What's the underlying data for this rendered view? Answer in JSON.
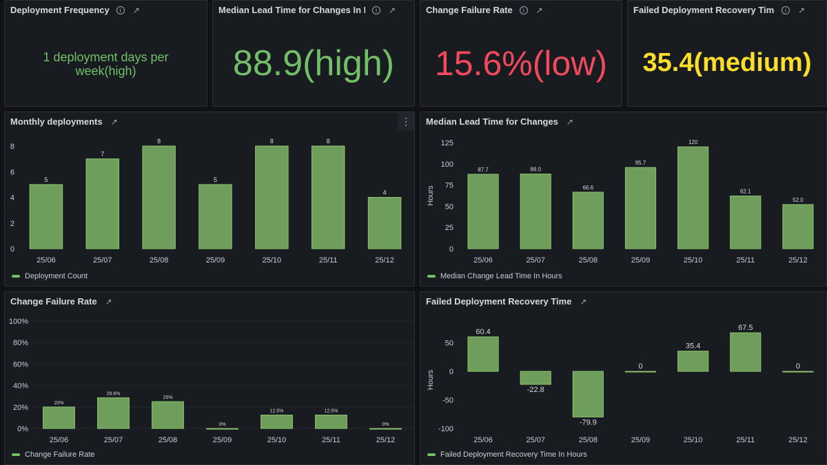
{
  "colors": {
    "green": "#73bf69",
    "red": "#f2495c",
    "yellow": "#fade2a",
    "bar_fill": "#6f9e5c",
    "bar_stroke": "#8ac56e"
  },
  "stats": [
    {
      "title": "Deployment Frequency",
      "value": "1 deployment days per week(high)",
      "color": "#73bf69"
    },
    {
      "title": "Median Lead Time for Changes In Hours",
      "value": "88.9(high)",
      "color": "#73bf69"
    },
    {
      "title": "Change Failure Rate",
      "value": "15.6%(low)",
      "color": "#f2495c"
    },
    {
      "title": "Failed Deployment Recovery Time In Hours",
      "value": "35.4(medium)",
      "color": "#fade2a"
    }
  ],
  "icons": {
    "info": "info-circle-icon",
    "link": "external-link-icon",
    "menu": "kebab-menu-icon"
  },
  "chart_data": [
    {
      "type": "bar",
      "title": "Monthly deployments",
      "categories": [
        "25/06",
        "25/07",
        "25/08",
        "25/09",
        "25/10",
        "25/11",
        "25/12"
      ],
      "series": [
        {
          "name": "Deployment Count",
          "values": [
            5,
            7,
            8,
            5,
            8,
            8,
            4
          ]
        }
      ],
      "data_labels": [
        "5",
        "7",
        "8",
        "5",
        "8",
        "8",
        "4"
      ],
      "yticks": [
        "0",
        "2",
        "4",
        "6",
        "8"
      ],
      "ytick_values": [
        0,
        2,
        4,
        6,
        8
      ],
      "ylim": [
        0,
        8
      ],
      "ylabel": "",
      "grid": false,
      "legend": "bottom-left"
    },
    {
      "type": "bar",
      "title": "Median Lead Time for Changes",
      "categories": [
        "25/06",
        "25/07",
        "25/08",
        "25/09",
        "25/10",
        "25/11",
        "25/12"
      ],
      "series": [
        {
          "name": "Median Change Lead Time In Hours",
          "values": [
            87.7,
            88.0,
            66.6,
            95.7,
            120,
            62.1,
            52.0
          ]
        }
      ],
      "data_labels": [
        "87.7",
        "88.0",
        "66.6",
        "95.7",
        "120",
        "62.1",
        "52.0"
      ],
      "yticks": [
        "0",
        "25",
        "50",
        "75",
        "100",
        "125"
      ],
      "ytick_values": [
        0,
        25,
        50,
        75,
        100,
        125
      ],
      "ylim": [
        0,
        125
      ],
      "ylabel": "Hours",
      "grid": false,
      "legend": "bottom-left"
    },
    {
      "type": "bar",
      "title": "Change Failure Rate",
      "categories": [
        "25/06",
        "25/07",
        "25/08",
        "25/09",
        "25/10",
        "25/11",
        "25/12"
      ],
      "series": [
        {
          "name": "Change Failure Rate",
          "values": [
            20,
            28.6,
            25,
            0,
            12.5,
            12.5,
            0
          ]
        }
      ],
      "data_labels": [
        "20%",
        "28.6%",
        "25%",
        "0%",
        "12.5%",
        "12.5%",
        "0%"
      ],
      "yticks": [
        "0%",
        "20%",
        "40%",
        "60%",
        "80%",
        "100%"
      ],
      "ytick_values": [
        0,
        20,
        40,
        60,
        80,
        100
      ],
      "ylim": [
        0,
        100
      ],
      "ylabel": "",
      "grid": true,
      "legend": "bottom-left"
    },
    {
      "type": "bar",
      "title": "Failed Deployment Recovery Time",
      "categories": [
        "25/06",
        "25/07",
        "25/08",
        "25/09",
        "25/10",
        "25/11",
        "25/12"
      ],
      "series": [
        {
          "name": "Failed Deployment Recovery Time In Hours",
          "values": [
            60.4,
            -22.8,
            -79.9,
            0,
            35.4,
            67.5,
            0
          ]
        }
      ],
      "data_labels": [
        "60.4",
        "-22.8",
        "-79.9",
        "0",
        "35.4",
        "67.5",
        "0"
      ],
      "yticks": [
        "-100",
        "-50",
        "0",
        "50"
      ],
      "ytick_values": [
        -100,
        -50,
        0,
        50
      ],
      "ylim": [
        -100,
        70
      ],
      "ylabel": "Hours",
      "grid": false,
      "legend": "bottom-left"
    }
  ]
}
